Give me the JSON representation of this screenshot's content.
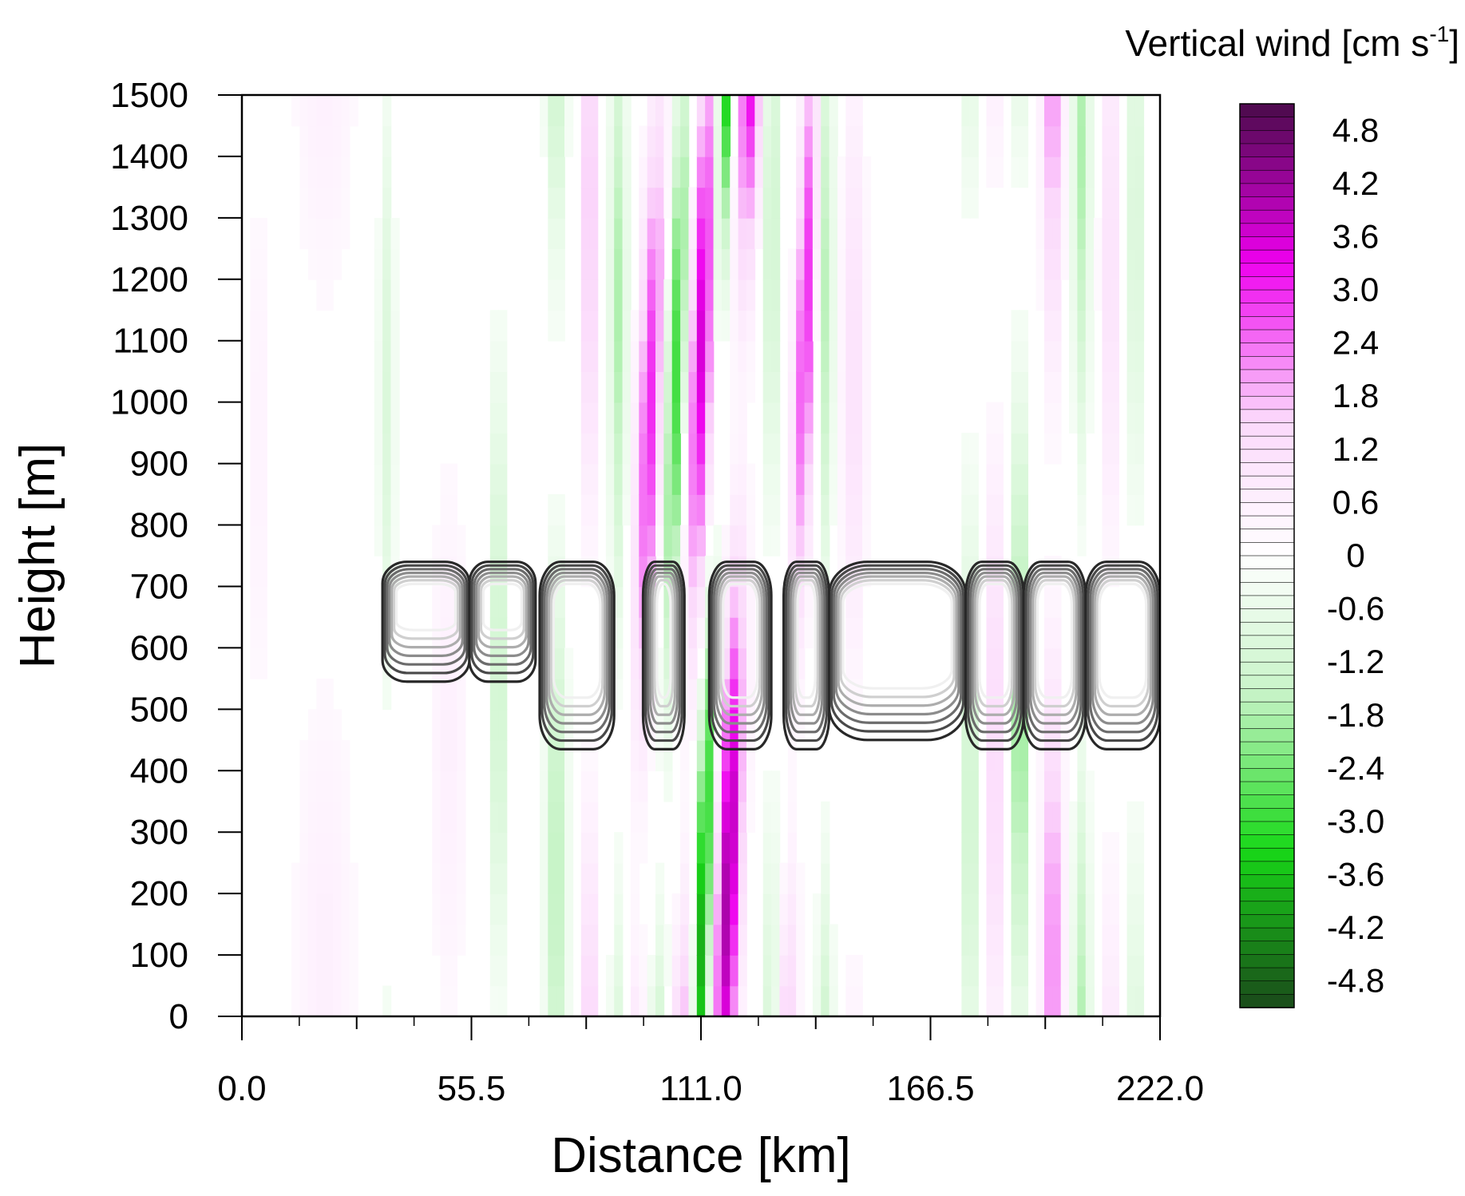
{
  "chart_data": {
    "type": "heatmap",
    "xlabel": "Distance [km]",
    "ylabel": "Height [m]",
    "xlim": [
      0,
      222
    ],
    "ylim": [
      0,
      1500
    ],
    "x_tick_labels": [
      "0.0",
      "55.5",
      "111.0",
      "166.5",
      "222.0"
    ],
    "y_tick_labels": [
      "0",
      "100",
      "200",
      "300",
      "400",
      "500",
      "600",
      "700",
      "800",
      "900",
      "1000",
      "1100",
      "1200",
      "1300",
      "1400",
      "1500"
    ],
    "colorbar": {
      "title_main": "Vertical wind [cm s",
      "title_sup": "-1",
      "title_end": "]",
      "range": [
        -5.1,
        5.1
      ],
      "labels": [
        "4.8",
        "4.2",
        "3.6",
        "3.0",
        "2.4",
        "1.8",
        "1.2",
        "0.6",
        "0",
        "-0.6",
        "-1.2",
        "-1.8",
        "-2.4",
        "-3.0",
        "-3.6",
        "-4.2",
        "-4.8"
      ],
      "colors": {
        "strong_positive": "#4a0a4a",
        "positive": "#ee00ee",
        "weak_positive": "#fbd8fb",
        "zero": "#ffffff",
        "weak_negative": "#c8f4c8",
        "negative": "#18d818",
        "strong_negative": "#1a4a1a"
      }
    },
    "plumes": [
      {
        "x": 4,
        "amp": 0.5,
        "w": 3
      },
      {
        "x": 20,
        "amp": 0.6,
        "w": 8
      },
      {
        "x": 35,
        "amp": -1.0,
        "w": 2
      },
      {
        "x": 50,
        "amp": 0.6,
        "w": 5
      },
      {
        "x": 62,
        "amp": -1.5,
        "w": 2
      },
      {
        "x": 76,
        "amp": -1.8,
        "w": 2.5
      },
      {
        "x": 84,
        "amp": 2.0,
        "w": 2
      },
      {
        "x": 91,
        "amp": -1.8,
        "w": 2
      },
      {
        "x": 98,
        "amp": 3.0,
        "w": 3
      },
      {
        "x": 104,
        "amp": -3.0,
        "w": 2.5
      },
      {
        "x": 110,
        "amp": 3.6,
        "w": 3
      },
      {
        "x": 114,
        "amp": -4.2,
        "w": 2
      },
      {
        "x": 120,
        "amp": 4.2,
        "w": 3
      },
      {
        "x": 128,
        "amp": -1.5,
        "w": 2
      },
      {
        "x": 135,
        "amp": 3.0,
        "w": 2.5
      },
      {
        "x": 141,
        "amp": -1.8,
        "w": 2
      },
      {
        "x": 148,
        "amp": 1.2,
        "w": 3
      },
      {
        "x": 176,
        "amp": -1.5,
        "w": 2
      },
      {
        "x": 182,
        "amp": 1.5,
        "w": 2.5
      },
      {
        "x": 188,
        "amp": -2.4,
        "w": 2
      },
      {
        "x": 196,
        "amp": 2.4,
        "w": 2.5
      },
      {
        "x": 203,
        "amp": -1.8,
        "w": 2
      },
      {
        "x": 210,
        "amp": 1.2,
        "w": 2.5
      },
      {
        "x": 216,
        "amp": -1.2,
        "w": 2
      }
    ],
    "contour_segments": [
      {
        "x0": 34,
        "x1": 55,
        "top": 740,
        "bottom": 545
      },
      {
        "x0": 55,
        "x1": 71,
        "top": 740,
        "bottom": 545
      },
      {
        "x0": 72,
        "x1": 90,
        "top": 740,
        "bottom": 435
      },
      {
        "x0": 97,
        "x1": 107,
        "top": 740,
        "bottom": 435
      },
      {
        "x0": 113,
        "x1": 128,
        "top": 740,
        "bottom": 435
      },
      {
        "x0": 131,
        "x1": 142,
        "top": 740,
        "bottom": 435
      },
      {
        "x0": 142,
        "x1": 175,
        "top": 740,
        "bottom": 450
      },
      {
        "x0": 175,
        "x1": 189,
        "top": 740,
        "bottom": 435
      },
      {
        "x0": 189,
        "x1": 204,
        "top": 740,
        "bottom": 435
      },
      {
        "x0": 204,
        "x1": 222,
        "top": 740,
        "bottom": 435
      }
    ]
  }
}
